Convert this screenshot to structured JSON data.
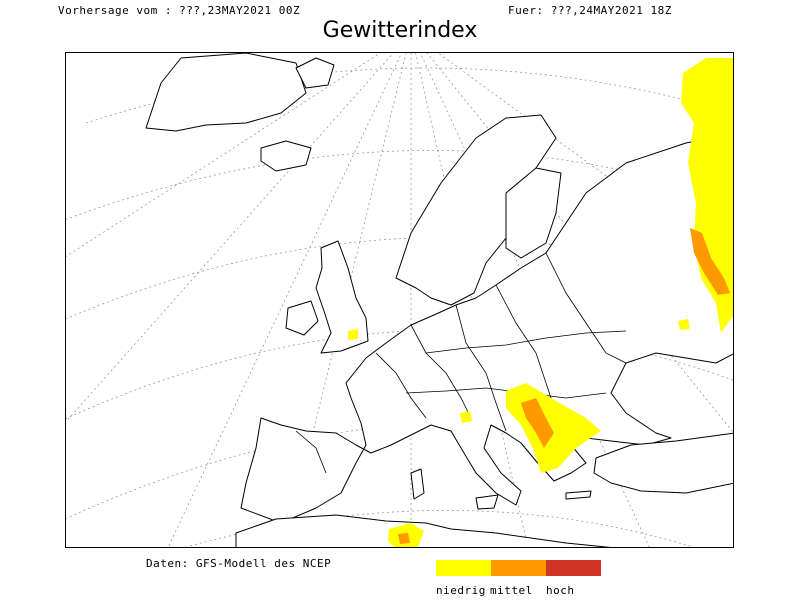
{
  "header": {
    "forecast_from": "Vorhersage vom : ???,23MAY2021 00Z",
    "valid_for": "Fuer: ???,24MAY2021 18Z"
  },
  "title": "Gewitterindex",
  "footer": {
    "source": "Daten: GFS-Modell des NCEP"
  },
  "legend": {
    "items": [
      {
        "label": "niedrig",
        "color": "#ffff00"
      },
      {
        "label": "mittel",
        "color": "#ff9900"
      },
      {
        "label": "hoch",
        "color": "#cc3322"
      }
    ]
  },
  "map": {
    "region": "Europe",
    "land_color": "#ffffff",
    "border_color": "#000000",
    "graticule": "dotted",
    "risk_areas": [
      {
        "area": "western Russia (eastern edge)",
        "level": "mittel"
      },
      {
        "area": "Balkans / western Serbia / Albania",
        "level": "mittel"
      },
      {
        "area": "northern Algeria",
        "level": "mittel"
      },
      {
        "area": "southeastern England",
        "level": "niedrig"
      },
      {
        "area": "northern Italy / Alps",
        "level": "niedrig"
      }
    ]
  }
}
